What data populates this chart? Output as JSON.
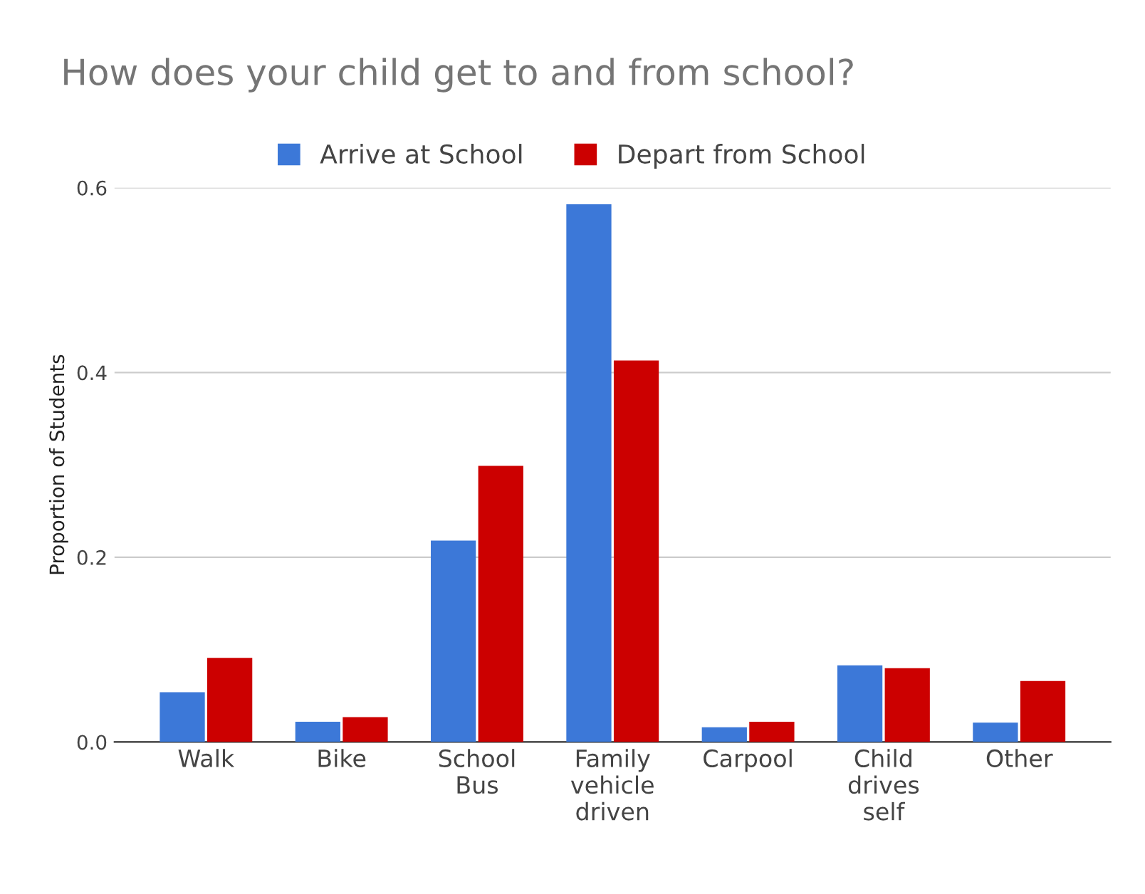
{
  "chart_data": {
    "type": "bar",
    "title": "How does your child get to and from school?",
    "ylabel": "Proportion of Students",
    "categories": [
      "Walk",
      "Bike",
      "School Bus",
      "Family vehicle driven",
      "Carpool",
      "Child drives self",
      "Other"
    ],
    "series": [
      {
        "name": "Arrive at School",
        "color": "#3c78d8",
        "values": [
          0.054,
          0.022,
          0.218,
          0.582,
          0.016,
          0.083,
          0.021
        ]
      },
      {
        "name": "Depart from School",
        "color": "#cc0000",
        "values": [
          0.091,
          0.027,
          0.299,
          0.413,
          0.022,
          0.08,
          0.066
        ]
      }
    ],
    "ylim": [
      0,
      0.6
    ],
    "yticks": [
      {
        "value": 0,
        "label": "0.0"
      },
      0.2,
      0.4,
      0.6
    ],
    "grid": "y",
    "legend": "top"
  }
}
